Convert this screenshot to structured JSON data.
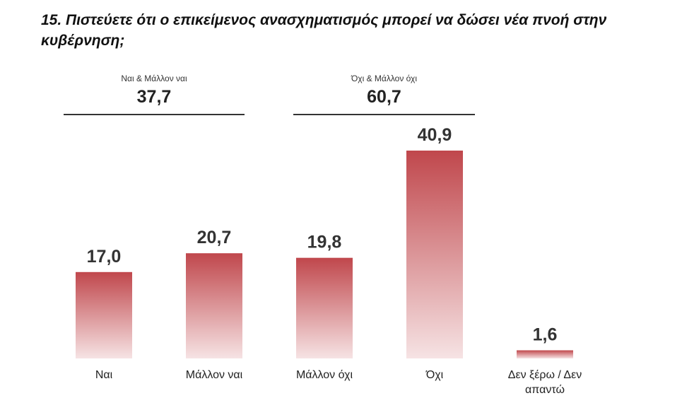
{
  "title": "15. Πιστεύετε ότι ο επικείμενος ανασχηματισμός μπορεί να δώσει νέα πνοή στην κυβέρνηση;",
  "groups": [
    {
      "label": "Ναι & Μάλλον ναι",
      "value": "37,7"
    },
    {
      "label": "Όχι & Μάλλον όχι",
      "value": "60,7"
    }
  ],
  "colors": {
    "bar_top": "#c0474c",
    "bar_bottom": "#f6e3e4"
  },
  "chart_data": {
    "type": "bar",
    "categories": [
      "Ναι",
      "Μάλλον ναι",
      "Μάλλον όχι",
      "Όχι",
      "Δεν ξέρω / Δεν απαντώ"
    ],
    "values": [
      17.0,
      20.7,
      19.8,
      40.9,
      1.6
    ],
    "data_labels": [
      "17,0",
      "20,7",
      "19,8",
      "40,9",
      "1,6"
    ],
    "title": "15. Πιστεύετε ότι ο επικείμενος ανασχηματισμός μπορεί να δώσει νέα πνοή στην κυβέρνηση;",
    "ylim": [
      0,
      40.9
    ],
    "grid": false,
    "legend": "none"
  }
}
